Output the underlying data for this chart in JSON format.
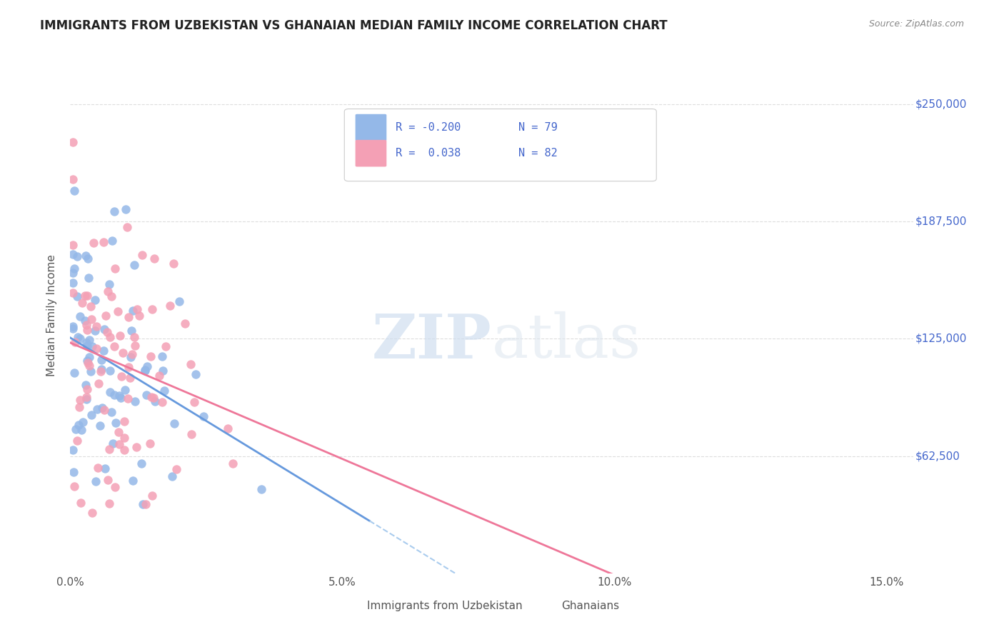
{
  "title": "IMMIGRANTS FROM UZBEKISTAN VS GHANAIAN MEDIAN FAMILY INCOME CORRELATION CHART",
  "source": "Source: ZipAtlas.com",
  "ylabel": "Median Family Income",
  "ytick_labels": [
    "$62,500",
    "$125,000",
    "$187,500",
    "$250,000"
  ],
  "ytick_values": [
    62500,
    125000,
    187500,
    250000
  ],
  "ylim": [
    0,
    275000
  ],
  "xlim": [
    0.0,
    0.155
  ],
  "R_blue": -0.2,
  "N_blue": 79,
  "R_pink": 0.038,
  "N_pink": 82,
  "color_blue": "#94b8e8",
  "color_pink": "#f4a0b5",
  "color_blue_line": "#6699dd",
  "color_pink_line": "#ee7799",
  "color_blue_text": "#4466cc",
  "color_dashed": "#aaccee",
  "watermark_ZIP": "ZIP",
  "watermark_atlas": "atlas",
  "legend_label_blue": "Immigrants from Uzbekistan",
  "legend_label_pink": "Ghanaians"
}
